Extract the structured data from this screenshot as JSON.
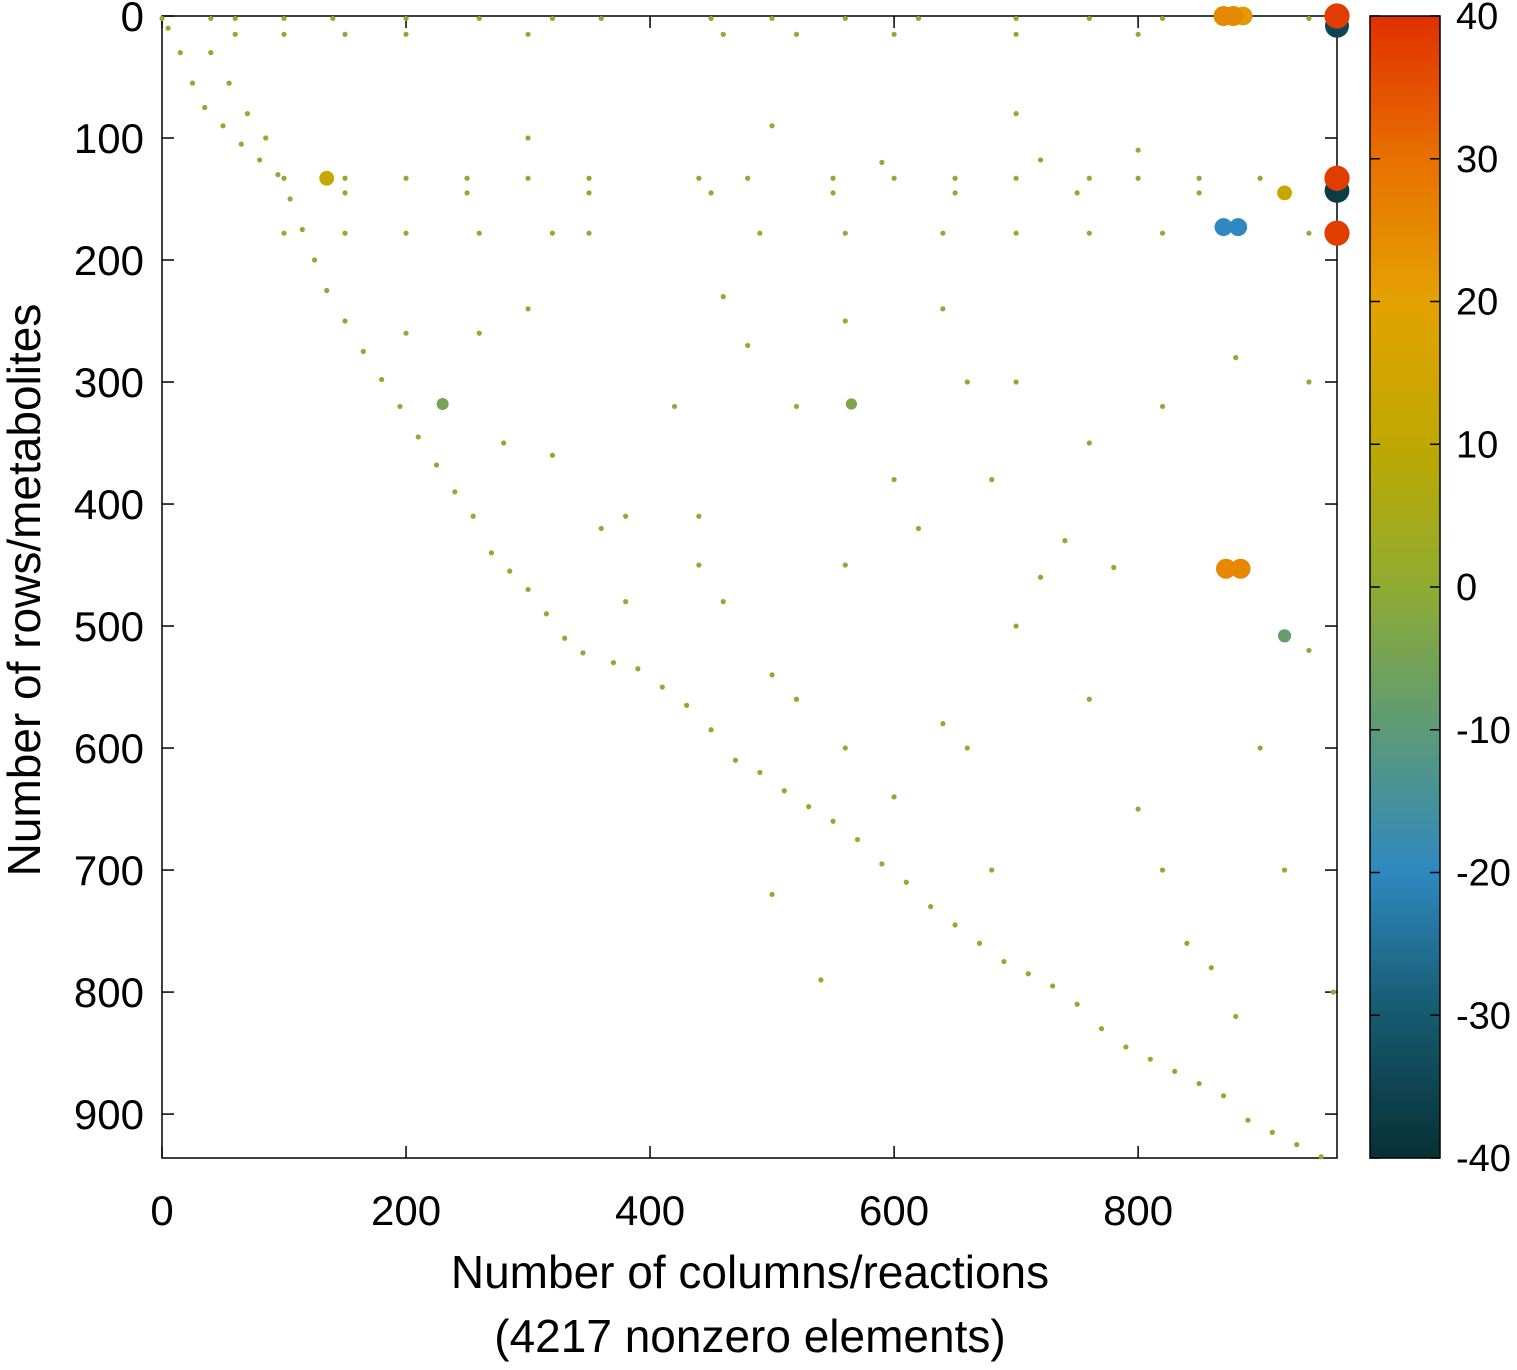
{
  "chart_data": {
    "type": "scatter",
    "xlabel": [
      "Number of columns/reactions",
      "(4217 nonzero elements)"
    ],
    "ylabel": "Number of rows/metabolites",
    "xlim": [
      0,
      963
    ],
    "ylim": [
      0,
      936
    ],
    "y_inverted": true,
    "xticks": [
      0,
      200,
      400,
      600,
      800
    ],
    "yticks": [
      0,
      100,
      200,
      300,
      400,
      500,
      600,
      700,
      800,
      900
    ],
    "colorbar": {
      "lim": [
        -40,
        40
      ],
      "ticks": [
        40,
        30,
        20,
        10,
        0,
        -10,
        -20,
        -30,
        -40
      ],
      "colormap": [
        {
          "value": -40,
          "color": "#083035"
        },
        {
          "value": -30,
          "color": "#155a6e"
        },
        {
          "value": -20,
          "color": "#2f88bf"
        },
        {
          "value": -10,
          "color": "#5c9a78"
        },
        {
          "value": 0,
          "color": "#8fab32"
        },
        {
          "value": 10,
          "color": "#bfa800"
        },
        {
          "value": 20,
          "color": "#e4a200"
        },
        {
          "value": 30,
          "color": "#e87000"
        },
        {
          "value": 40,
          "color": "#e03000"
        }
      ]
    },
    "x": [
      870,
      878,
      886,
      963,
      963,
      963,
      963,
      870,
      882,
      963,
      872,
      884,
      920,
      920,
      230,
      135,
      565,
      0,
      40,
      60,
      100,
      140,
      200,
      260,
      320,
      360,
      450,
      500,
      560,
      620,
      700,
      760,
      820,
      940,
      60,
      100,
      150,
      200,
      300,
      460,
      520,
      600,
      700,
      800,
      100,
      150,
      200,
      250,
      300,
      350,
      440,
      480,
      550,
      600,
      650,
      700,
      760,
      800,
      850,
      900,
      150,
      250,
      350,
      450,
      550,
      650,
      750,
      850,
      100,
      150,
      200,
      260,
      320,
      350,
      490,
      560,
      640,
      700,
      760,
      820,
      880,
      940,
      5,
      15,
      25,
      35,
      50,
      65,
      80,
      95,
      105,
      115,
      125,
      135,
      150,
      165,
      180,
      195,
      210,
      225,
      240,
      255,
      270,
      285,
      300,
      315,
      330,
      345,
      370,
      390,
      410,
      430,
      450,
      470,
      490,
      510,
      530,
      550,
      570,
      590,
      610,
      630,
      650,
      670,
      690,
      710,
      730,
      750,
      770,
      790,
      810,
      830,
      850,
      870,
      890,
      910,
      930,
      950,
      40,
      55,
      70,
      85,
      300,
      420,
      440,
      460,
      500,
      520,
      560,
      600,
      640,
      660,
      680,
      700,
      720,
      760,
      780,
      800,
      820,
      840,
      860,
      880,
      900,
      920,
      940,
      960,
      600,
      560,
      640,
      700,
      760,
      820,
      880,
      940,
      460,
      480,
      520,
      360,
      380,
      560,
      680,
      740,
      620,
      660,
      380,
      320,
      260,
      200,
      280,
      440,
      500,
      540,
      590,
      720,
      800,
      300,
      500,
      700
    ],
    "y": [
      0,
      0,
      0,
      0,
      8,
      133,
      143,
      173,
      173,
      178,
      453,
      453,
      145,
      508,
      318,
      133,
      318,
      2,
      2,
      2,
      2,
      2,
      2,
      2,
      2,
      2,
      2,
      2,
      2,
      2,
      2,
      2,
      2,
      2,
      15,
      15,
      15,
      15,
      15,
      15,
      15,
      15,
      15,
      15,
      133,
      133,
      133,
      133,
      133,
      133,
      133,
      133,
      133,
      133,
      133,
      133,
      133,
      133,
      133,
      133,
      145,
      145,
      145,
      145,
      145,
      145,
      145,
      145,
      178,
      178,
      178,
      178,
      178,
      178,
      178,
      178,
      178,
      178,
      178,
      178,
      178,
      178,
      10,
      30,
      55,
      75,
      90,
      105,
      118,
      130,
      150,
      175,
      200,
      225,
      250,
      275,
      298,
      320,
      345,
      368,
      390,
      410,
      440,
      455,
      470,
      490,
      510,
      522,
      530,
      535,
      550,
      565,
      585,
      610,
      620,
      635,
      648,
      660,
      675,
      695,
      710,
      730,
      745,
      760,
      775,
      785,
      795,
      810,
      830,
      845,
      855,
      865,
      875,
      885,
      905,
      915,
      925,
      935,
      30,
      55,
      80,
      100,
      240,
      320,
      450,
      480,
      540,
      560,
      600,
      640,
      580,
      600,
      700,
      500,
      460,
      560,
      452,
      650,
      700,
      760,
      780,
      820,
      600,
      700,
      520,
      800,
      380,
      250,
      240,
      300,
      350,
      320,
      280,
      300,
      230,
      270,
      320,
      420,
      480,
      450,
      380,
      430,
      420,
      300,
      410,
      360,
      260,
      260,
      350,
      410,
      720,
      790,
      120,
      118,
      110,
      100,
      90,
      80
    ],
    "values": [
      25,
      25,
      22,
      38,
      -35,
      38,
      -37,
      -20,
      -20,
      38,
      25,
      25,
      12,
      -8,
      -5,
      12,
      -3,
      0,
      0,
      0,
      0,
      0,
      0,
      0,
      0,
      0,
      0,
      0,
      0,
      0,
      0,
      0,
      0,
      0,
      0,
      0,
      0,
      0,
      0,
      0,
      0,
      0,
      0,
      0,
      0,
      0,
      0,
      0,
      0,
      0,
      0,
      0,
      0,
      0,
      0,
      0,
      0,
      0,
      0,
      0,
      0,
      0,
      0,
      0,
      0,
      0,
      0,
      0,
      0,
      0,
      0,
      0,
      0,
      0,
      0,
      0,
      0,
      0,
      0,
      0,
      0,
      0,
      0,
      0,
      0,
      0,
      0,
      0,
      0,
      0,
      0,
      0,
      0,
      0,
      0,
      0,
      0,
      0,
      0,
      0,
      0,
      0,
      0,
      0,
      0,
      0,
      0,
      0,
      0,
      0,
      0,
      0,
      0,
      0,
      0,
      0,
      0,
      0,
      0,
      0,
      0,
      0,
      0,
      0,
      0,
      0,
      0,
      0,
      0,
      0,
      0,
      0,
      0,
      0,
      0,
      0,
      0,
      0,
      0,
      0,
      0,
      0,
      0,
      0,
      0,
      0,
      0,
      0,
      0,
      0,
      0,
      0,
      0,
      0,
      0,
      0,
      0,
      0,
      0,
      0,
      0,
      0,
      0,
      0,
      0,
      0,
      0,
      0,
      0,
      0,
      0,
      0,
      0,
      0,
      0,
      0,
      0,
      0,
      0,
      0,
      0,
      0,
      0,
      0,
      0,
      0,
      0,
      0,
      0,
      0,
      0,
      0,
      0,
      0,
      0,
      0,
      0,
      0
    ]
  }
}
